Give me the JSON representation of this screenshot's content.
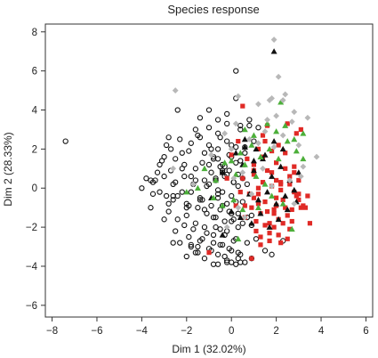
{
  "chart_data": {
    "type": "scatter",
    "title": "Species response",
    "xlabel": "Dim 1 (32.02%)",
    "ylabel": "Dim 2 (28.33%)",
    "xlim": [
      -8.3,
      6.3
    ],
    "ylim": [
      -6.6,
      8.4
    ],
    "xticks": [
      -8,
      -6,
      -4,
      -2,
      0,
      2,
      4,
      6
    ],
    "yticks": [
      -6,
      -4,
      -2,
      0,
      2,
      4,
      6,
      8
    ],
    "grid": false,
    "legend": "none",
    "series": [
      {
        "marker": "open-circle",
        "color": "#111111",
        "x": [
          -7.4,
          -2.4,
          -4,
          -3.8,
          -3.5,
          -3.2,
          -3.6,
          -3.3,
          -3.0,
          -2.9,
          -2.7,
          -2.5,
          -2.2,
          -2.0,
          -1.8,
          -1.6,
          -1.4,
          -1.2,
          -1.0,
          -0.8,
          -0.6,
          -0.4,
          -0.2,
          0.0,
          0.2,
          0.4,
          0.6,
          0.8,
          1.0,
          -2.8,
          -2.6,
          -2.4,
          -2.2,
          -2.0,
          -1.8,
          -1.6,
          -1.4,
          -1.2,
          -1.0,
          -0.8,
          -0.6,
          -0.4,
          -0.2,
          0.0,
          0.3,
          0.5,
          -3.1,
          -2.9,
          -2.7,
          -2.5,
          -2.3,
          -2.1,
          -1.9,
          -1.7,
          -1.5,
          -1.3,
          -1.1,
          -0.9,
          -0.7,
          -0.5,
          -0.3,
          -0.1,
          0.1,
          -3.4,
          -3.2,
          -3.0,
          -2.8,
          -2.6,
          -2.4,
          -2.2,
          -2.0,
          -1.8,
          -1.6,
          -1.4,
          -1.2,
          -1.0,
          -0.8,
          -0.6,
          -0.4,
          -0.2,
          0.0,
          0.2,
          -2.5,
          -2.3,
          -2.1,
          -1.9,
          -1.7,
          -1.5,
          -1.3,
          -1.1,
          -0.9,
          -0.7,
          -0.5,
          -0.3,
          -0.1,
          0.1,
          0.3,
          -2.0,
          -1.8,
          -1.6,
          -1.4,
          -1.2,
          -1.0,
          -0.8,
          -0.6,
          -0.4,
          -0.2,
          0.0,
          0.2,
          0.4,
          0.6,
          -1.5,
          -1.3,
          -1.1,
          -0.9,
          -0.7,
          -0.5,
          -0.3,
          -0.1,
          0.1,
          0.3,
          0.5,
          0.7,
          0.9,
          -1.2,
          -1.0,
          -0.8,
          -0.6,
          -0.4,
          -0.2,
          0.0,
          0.2,
          0.4,
          0.6,
          -0.9,
          -0.7,
          -0.5,
          -0.3,
          -0.1,
          0.1,
          0.3,
          0.5,
          -0.6,
          -0.4,
          -0.2,
          0.0,
          0.2,
          -0.3,
          0.0,
          0.3,
          0.2,
          -1.4,
          -1.0,
          -0.6,
          -0.2,
          0.4,
          0.8,
          1.2,
          -1.8,
          -1.5,
          -2.6,
          -3.0,
          -3.5,
          -2.1,
          -1.9,
          -0.8,
          1.5,
          1.8,
          0.9,
          0.4,
          1.1,
          -0.2,
          0.7,
          2.3,
          0.3,
          -0.6
        ],
        "y": [
          2.4,
          4.0,
          0.0,
          0.5,
          -0.3,
          1.2,
          -1.0,
          0.8,
          1.6,
          -0.4,
          2.0,
          0.3,
          1.8,
          -0.8,
          2.3,
          1.0,
          2.6,
          0.4,
          3.1,
          1.6,
          2.8,
          0.9,
          3.3,
          2.2,
          1.3,
          3.0,
          2.1,
          3.2,
          2.4,
          -1.2,
          -0.6,
          -1.6,
          -0.2,
          -1.4,
          0.6,
          -1.8,
          -0.5,
          -1.1,
          0.2,
          -1.5,
          -0.3,
          -0.9,
          0.7,
          -1.3,
          0.1,
          -0.7,
          1.4,
          2.2,
          0.9,
          1.5,
          2.5,
          0.6,
          1.9,
          0.2,
          2.7,
          1.3,
          0.1,
          2.0,
          0.5,
          2.6,
          1.1,
          1.7,
          0.3,
          0.4,
          -0.2,
          0.6,
          -0.8,
          0.2,
          -0.4,
          1.0,
          -1.0,
          -0.2,
          0.4,
          -0.6,
          -2.0,
          1.2,
          -2.4,
          -0.1,
          0.8,
          -2.2,
          -1.7,
          -2.6,
          -2.2,
          -2.8,
          -1.9,
          -2.5,
          -2.1,
          -3.0,
          -2.6,
          -2.3,
          -3.2,
          -2.0,
          -2.9,
          -2.4,
          -3.1,
          -2.7,
          -2.0,
          -3.5,
          -3.0,
          -3.3,
          -2.7,
          -3.6,
          -3.1,
          -2.8,
          -3.4,
          -2.9,
          -3.7,
          -3.2,
          -3.9,
          -3.4,
          -3.8,
          -1.0,
          -0.6,
          -1.3,
          -0.9,
          -1.5,
          -1.1,
          -1.7,
          -1.2,
          -1.6,
          -1.3,
          -1.8,
          -1.5,
          -1.9,
          1.8,
          2.2,
          1.5,
          2.0,
          1.2,
          2.4,
          1.6,
          2.1,
          1.4,
          1.8,
          0.8,
          0.4,
          1.1,
          0.6,
          0.9,
          0.3,
          0.7,
          0.5,
          -0.5,
          -0.2,
          -0.8,
          -0.4,
          -0.7,
          -3.5,
          -3.8,
          -3.6,
          4.6,
          3.6,
          4.0,
          3.5,
          3.8,
          3.2,
          3.5,
          3.1,
          -2.9,
          -3.3,
          -2.8,
          -1.6,
          0.3,
          1.2,
          -0.9,
          -3.9,
          -3.2,
          -3.4,
          -3.6,
          -3.8,
          -2.6,
          -3.8,
          -2.8,
          -2.7,
          -3.3,
          -3.9
        ],
        "extra": [
          [
            0.2,
            6.0
          ],
          [
            -1.6,
            3.0
          ],
          [
            -2.8,
            2.6
          ],
          [
            -0.6,
            1.5
          ],
          [
            0.7,
            0.2
          ],
          [
            -3.6,
            0.4
          ],
          [
            -2.6,
            -0.4
          ],
          [
            -0.5,
            -2.1
          ],
          [
            0.9,
            -1.4
          ]
        ]
      },
      {
        "marker": "filled-square",
        "color": "#e02a26",
        "x": [
          0.5,
          0.8,
          1.0,
          1.2,
          1.4,
          1.6,
          1.8,
          2.0,
          2.2,
          2.4,
          2.6,
          2.8,
          3.0,
          3.2,
          0.6,
          0.9,
          1.1,
          1.3,
          1.5,
          1.7,
          1.9,
          2.1,
          2.3,
          2.5,
          2.7,
          2.9,
          3.1,
          0.7,
          1.0,
          1.2,
          1.4,
          1.6,
          1.8,
          2.0,
          2.2,
          2.4,
          2.6,
          2.8,
          3.0,
          1.1,
          1.3,
          1.5,
          1.7,
          1.9,
          2.1,
          2.3,
          2.5,
          2.7,
          1.2,
          1.5,
          1.8,
          2.1,
          2.4,
          0.4,
          1.0,
          2.0,
          2.8,
          3.3,
          3.5,
          2.9,
          1.6,
          0.3,
          0.0,
          -0.2,
          0.5,
          1.4,
          2.5,
          3.1,
          0.6,
          1.7,
          2.2,
          0.9,
          1.3,
          -1.0,
          1.9,
          2.6,
          3.4,
          0.2,
          1.0,
          2.0,
          3.0,
          1.2,
          2.2
        ],
        "y": [
          0.5,
          -0.3,
          0.9,
          -0.8,
          0.3,
          -1.2,
          0.8,
          -0.5,
          0.2,
          -1.0,
          0.6,
          -0.2,
          0.4,
          -0.9,
          -1.5,
          -1.0,
          -1.7,
          -1.3,
          -0.7,
          -1.8,
          -1.1,
          -1.6,
          -0.6,
          -1.4,
          -1.1,
          -0.4,
          -1.0,
          1.5,
          1.2,
          0.0,
          1.6,
          0.9,
          0.1,
          1.3,
          -0.1,
          1.0,
          0.2,
          1.1,
          -0.3,
          -2.2,
          -2.5,
          -1.9,
          -2.7,
          -2.0,
          -2.4,
          -1.8,
          -2.6,
          -1.7,
          2.0,
          2.4,
          1.9,
          2.2,
          1.8,
          -0.2,
          -0.5,
          -0.9,
          0.8,
          -1.0,
          -1.8,
          2.8,
          3.2,
          2.4,
          1.7,
          0.5,
          4.2,
          2.7,
          3.3,
          3.0,
          -0.9,
          -2.3,
          -2.8,
          -3.6,
          -2.9,
          -3.3,
          -1.3,
          -2.1,
          -0.4,
          -0.9,
          0.7,
          0.4,
          -0.6,
          -0.3,
          0.3
        ],
        "extra": []
      },
      {
        "marker": "filled-triangle",
        "color": "#111111",
        "x": [
          1.9,
          0.5,
          1.0,
          1.4,
          1.8,
          2.2,
          2.6,
          3.0,
          0.8,
          1.2,
          1.6,
          2.0,
          2.4,
          2.8,
          -0.9,
          -0.4,
          0.2,
          0.6,
          1.1,
          1.5,
          1.9,
          2.3,
          0.0,
          0.4,
          0.9,
          1.3,
          1.7,
          2.1,
          2.5,
          2.9,
          0.6,
          1.0,
          -0.4
        ],
        "y": [
          7.0,
          1.2,
          0.9,
          1.5,
          0.6,
          1.1,
          0.4,
          0.8,
          -0.3,
          -0.6,
          -0.2,
          -0.8,
          -0.4,
          -0.1,
          -0.5,
          0.8,
          1.8,
          2.1,
          2.0,
          1.7,
          2.4,
          2.0,
          -1.2,
          -1.5,
          -1.8,
          -1.3,
          -2.0,
          -1.6,
          -1.1,
          -0.7,
          2.5,
          1.4,
          -2.4
        ],
        "extra": []
      },
      {
        "marker": "filled-triangle",
        "color": "#4caf3a",
        "x": [
          2.2,
          0.6,
          1.0,
          1.6,
          2.0,
          2.4,
          2.8,
          3.2,
          0.0,
          0.4,
          0.9,
          1.3,
          1.7,
          2.1,
          2.5,
          2.9,
          -1.2,
          -0.7,
          -0.3,
          0.2,
          0.6,
          1.1,
          1.5,
          -0.8,
          -0.4,
          0.1,
          0.5,
          1.2,
          1.8,
          2.3,
          -1.5,
          -2.0,
          3.2,
          0.3,
          2.7
        ],
        "y": [
          4.4,
          3.0,
          2.7,
          3.3,
          2.9,
          3.2,
          2.5,
          2.8,
          1.4,
          1.8,
          2.2,
          1.6,
          2.0,
          1.5,
          2.4,
          1.9,
          1.0,
          0.4,
          1.3,
          0.7,
          1.2,
          0.6,
          0.2,
          -0.5,
          -0.9,
          -0.6,
          -1.1,
          -1.0,
          -0.4,
          -0.8,
          0.0,
          -0.2,
          1.5,
          -2.6,
          -2.1
        ],
        "extra": []
      },
      {
        "marker": "filled-diamond",
        "color": "#b8b8b8",
        "x": [
          1.9,
          2.1,
          2.4,
          1.7,
          2.3,
          2.0,
          0.2,
          1.6,
          3.4,
          3.8,
          3.0,
          2.6,
          2.8,
          -1.7,
          -0.9,
          -2.6,
          -0.3,
          0.8,
          1.2,
          1.5,
          1.9,
          2.3,
          2.7,
          3.1,
          0.1,
          0.5,
          0.9,
          1.4,
          1.8,
          0.3,
          0.6,
          -0.2
        ],
        "y": [
          7.6,
          5.7,
          4.8,
          4.5,
          4.5,
          3.7,
          3.3,
          3.5,
          3.6,
          1.6,
          2.2,
          0.4,
          -0.8,
          0.2,
          1.7,
          1.0,
          2.8,
          2.5,
          2.3,
          2.9,
          2.1,
          2.7,
          3.4,
          0.6,
          0.5,
          0.8,
          -0.3,
          1.0,
          0.1,
          -1.0,
          -1.5,
          -2.0
        ],
        "extra": [
          [
            -2.5,
            5.0
          ],
          [
            2.8,
            3.9
          ],
          [
            1.2,
            4.3
          ],
          [
            0.3,
            4.7
          ],
          [
            1.8,
            4.6
          ],
          [
            3.2,
            1.1
          ],
          [
            0.0,
            2.0
          ]
        ]
      }
    ]
  }
}
